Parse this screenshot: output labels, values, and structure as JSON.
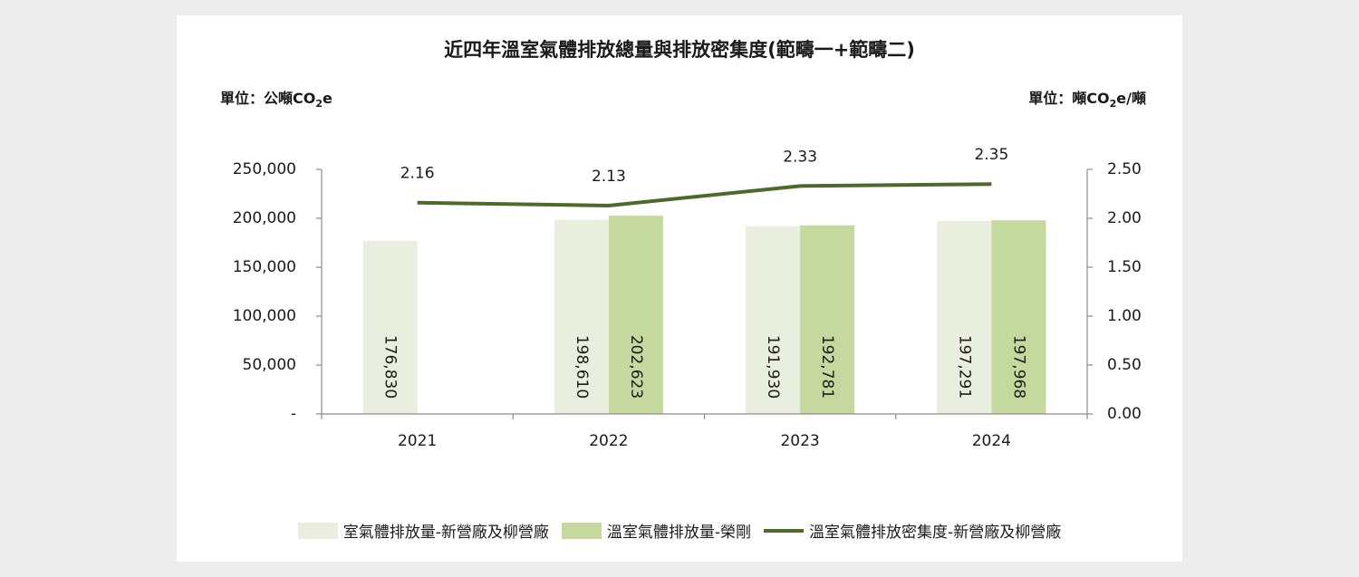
{
  "chart_data": {
    "type": "bar",
    "title": "近四年溫室氣體排放總量與排放密集度(範疇一+範疇二)",
    "unit_left_prefix": "單位：公噸",
    "unit_left_sym": "CO",
    "unit_left_sub": "2",
    "unit_left_suffix": "e",
    "unit_right_prefix": "單位：噸",
    "unit_right_sym": "CO",
    "unit_right_sub": "2",
    "unit_right_suffix": "e/噸",
    "categories": [
      "2021",
      "2022",
      "2023",
      "2024"
    ],
    "series": [
      {
        "name": "室氣體排放量-新營廠及柳營廠",
        "type": "bar",
        "axis": "left",
        "color": "#eaeedf",
        "values": [
          176830,
          198610,
          191930,
          197291
        ],
        "labels": [
          "176,830",
          "198,610",
          "191,930",
          "197,291"
        ]
      },
      {
        "name": "溫室氣體排放量-榮剛",
        "type": "bar",
        "axis": "left",
        "color": "#c5d99e",
        "values": [
          null,
          202623,
          192781,
          197968
        ],
        "labels": [
          "",
          "202,623",
          "192,781",
          "197,968"
        ]
      },
      {
        "name": "溫室氣體排放密集度-新營廠及柳營廠",
        "type": "line",
        "axis": "right",
        "color": "#4e6a2a",
        "values": [
          2.16,
          2.13,
          2.33,
          2.35
        ],
        "labels": [
          "2.16",
          "2.13",
          "2.33",
          "2.35"
        ]
      }
    ],
    "y_left": {
      "ylim": [
        0,
        250000
      ],
      "ticks": [
        0,
        50000,
        100000,
        150000,
        200000,
        250000
      ],
      "tick_labels": [
        "-",
        "50,000",
        "100,000",
        "150,000",
        "200,000",
        "250,000"
      ]
    },
    "y_right": {
      "ylim": [
        0,
        2.5
      ],
      "ticks": [
        0,
        0.5,
        1,
        1.5,
        2,
        2.5
      ],
      "tick_labels": [
        "0.00",
        "0.50",
        "1.00",
        "1.50",
        "2.00",
        "2.50"
      ]
    },
    "grid": false,
    "legend_position": "bottom"
  }
}
